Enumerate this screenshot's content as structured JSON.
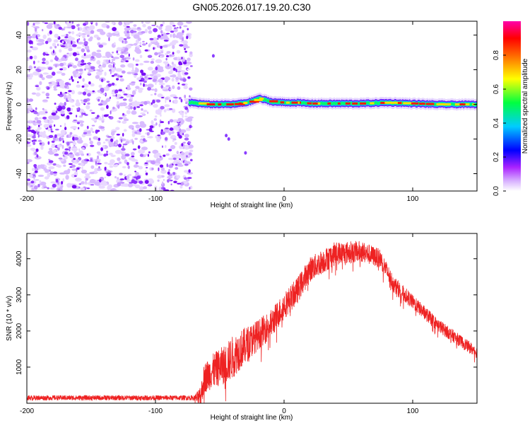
{
  "title": "GN05.2026.017.19.20.C30",
  "chart_data": [
    {
      "type": "heatmap",
      "xlabel": "Height of straight line (km)",
      "ylabel": "Frequency (Hz)",
      "xlim": [
        -200,
        150
      ],
      "ylim": [
        -50,
        48
      ],
      "x_ticks": [
        -200,
        -100,
        0,
        100
      ],
      "y_ticks": [
        -40,
        -20,
        0,
        20,
        40
      ],
      "colorbar": {
        "label": "Normalized spectral amplitude",
        "range": [
          0.0,
          1.0
        ],
        "ticks": [
          "0.0",
          "0.2",
          "0.4",
          "0.6",
          "0.8"
        ],
        "tick_values": [
          0.0,
          0.2,
          0.4,
          0.6,
          0.8
        ],
        "colors": [
          "#ffffff",
          "#cc00ff",
          "#0000ff",
          "#00ffff",
          "#00ff00",
          "#ffff00",
          "#ff0000",
          "#ff00ff"
        ]
      },
      "noise_region_x": [
        -200,
        -72
      ],
      "ridge": {
        "description": "narrow high-amplitude ridge near 0 Hz",
        "x": [
          -72,
          -60,
          -40,
          -30,
          -25,
          -20,
          -15,
          -10,
          0,
          10,
          20,
          40,
          60,
          80,
          100,
          120,
          140,
          150
        ],
        "freq": [
          1,
          0,
          0,
          1,
          2,
          3.5,
          2.5,
          1.5,
          1,
          1,
          0.5,
          0.5,
          0.5,
          1,
          0.5,
          0,
          0,
          0
        ]
      },
      "stray_points": [
        {
          "x": -45,
          "y": -18
        },
        {
          "x": -43,
          "y": -20
        },
        {
          "x": -55,
          "y": 28
        },
        {
          "x": -30,
          "y": -28
        }
      ]
    },
    {
      "type": "line",
      "xlabel": "Height of straight line (km)",
      "ylabel": "SNR (10 * v/v)",
      "xlim": [
        -200,
        150
      ],
      "ylim": [
        0,
        4700
      ],
      "x_ticks": [
        -200,
        -100,
        0,
        100
      ],
      "y_ticks": [
        1000,
        2000,
        3000,
        4000
      ],
      "color": "#ee2222",
      "envelope": {
        "x": [
          -200,
          -150,
          -100,
          -75,
          -65,
          -62,
          -55,
          -45,
          -35,
          -25,
          -10,
          0,
          10,
          20,
          40,
          60,
          75,
          85,
          100,
          120,
          140,
          150
        ],
        "y": [
          150,
          150,
          150,
          150,
          150,
          700,
          900,
          1100,
          1450,
          1750,
          2200,
          2700,
          3100,
          3700,
          4150,
          4200,
          4000,
          3300,
          2800,
          2150,
          1650,
          1400
        ]
      },
      "noise": {
        "x": [
          -200,
          -70,
          -62,
          -40,
          -20,
          0,
          20,
          60,
          100,
          150
        ],
        "amp": [
          70,
          70,
          420,
          600,
          420,
          380,
          350,
          300,
          200,
          160
        ]
      }
    }
  ]
}
